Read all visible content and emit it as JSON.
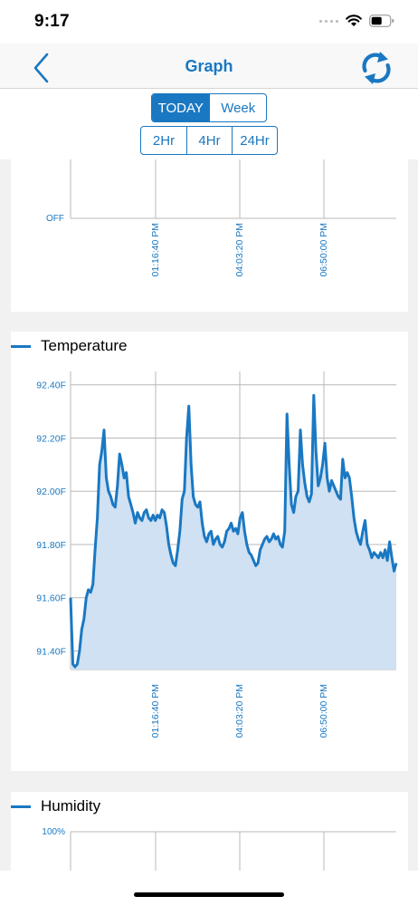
{
  "status_bar": {
    "time": "9:17"
  },
  "nav": {
    "title": "Graph",
    "back_icon": "chevron-left-icon",
    "refresh_icon": "refresh-icon"
  },
  "period_tabs": [
    {
      "label": "TODAY",
      "active": true
    },
    {
      "label": "Week",
      "active": false
    }
  ],
  "range_tabs": [
    {
      "label": "2Hr"
    },
    {
      "label": "4Hr"
    },
    {
      "label": "24Hr"
    }
  ],
  "colors": {
    "accent": "#1a78c2",
    "fill": "#cfe1f2",
    "grid": "#b8b8b8",
    "page_bg": "#f1f1f1"
  },
  "chart_data": [
    {
      "type": "line",
      "title": "",
      "y_tick_labels": [
        "OFF"
      ],
      "x_tick_labels": [
        "01:16:40 PM",
        "04:03:20 PM",
        "06:50:00 PM"
      ],
      "series": []
    },
    {
      "type": "area",
      "legend": "Temperature",
      "y_tick_labels": [
        "92.40F",
        "92.20F",
        "92.00F",
        "91.80F",
        "91.60F",
        "91.40F"
      ],
      "x_tick_labels": [
        "01:16:40 PM",
        "04:03:20 PM",
        "06:50:00 PM"
      ],
      "ylim": [
        91.33,
        92.45
      ],
      "series": [
        {
          "name": "Temperature",
          "values": [
            91.6,
            91.35,
            91.34,
            91.35,
            91.4,
            91.48,
            91.52,
            91.6,
            91.63,
            91.62,
            91.65,
            91.78,
            91.9,
            92.1,
            92.15,
            92.23,
            92.05,
            92.0,
            91.98,
            91.95,
            91.94,
            92.02,
            92.14,
            92.1,
            92.05,
            92.07,
            91.98,
            91.95,
            91.92,
            91.88,
            91.92,
            91.9,
            91.89,
            91.92,
            91.93,
            91.9,
            91.89,
            91.91,
            91.89,
            91.91,
            91.9,
            91.93,
            91.92,
            91.87,
            91.8,
            91.76,
            91.73,
            91.72,
            91.78,
            91.85,
            91.97,
            92.0,
            92.2,
            92.32,
            92.1,
            91.98,
            91.95,
            91.94,
            91.96,
            91.88,
            91.83,
            91.81,
            91.84,
            91.85,
            91.8,
            91.82,
            91.83,
            91.8,
            91.79,
            91.81,
            91.85,
            91.86,
            91.88,
            91.85,
            91.86,
            91.84,
            91.9,
            91.92,
            91.85,
            91.8,
            91.77,
            91.76,
            91.74,
            91.72,
            91.73,
            91.78,
            91.8,
            91.82,
            91.83,
            91.81,
            91.82,
            91.84,
            91.82,
            91.83,
            91.8,
            91.79,
            91.85,
            92.29,
            92.1,
            91.95,
            91.92,
            91.98,
            92.0,
            92.23,
            92.1,
            92.03,
            91.98,
            91.96,
            91.99,
            92.36,
            92.15,
            92.02,
            92.05,
            92.1,
            92.18,
            92.05,
            92.0,
            92.04,
            92.02,
            92.0,
            91.98,
            91.97,
            92.12,
            92.05,
            92.07,
            92.05,
            91.98,
            91.9,
            91.85,
            91.82,
            91.8,
            91.85,
            91.89,
            91.8,
            91.78,
            91.75,
            91.77,
            91.76,
            91.75,
            91.77,
            91.75,
            91.78,
            91.74,
            91.81,
            91.75,
            91.7,
            91.73
          ]
        }
      ]
    },
    {
      "type": "line",
      "legend": "Humidity",
      "y_tick_labels": [
        "100%"
      ],
      "x_tick_labels": [],
      "series": []
    }
  ]
}
